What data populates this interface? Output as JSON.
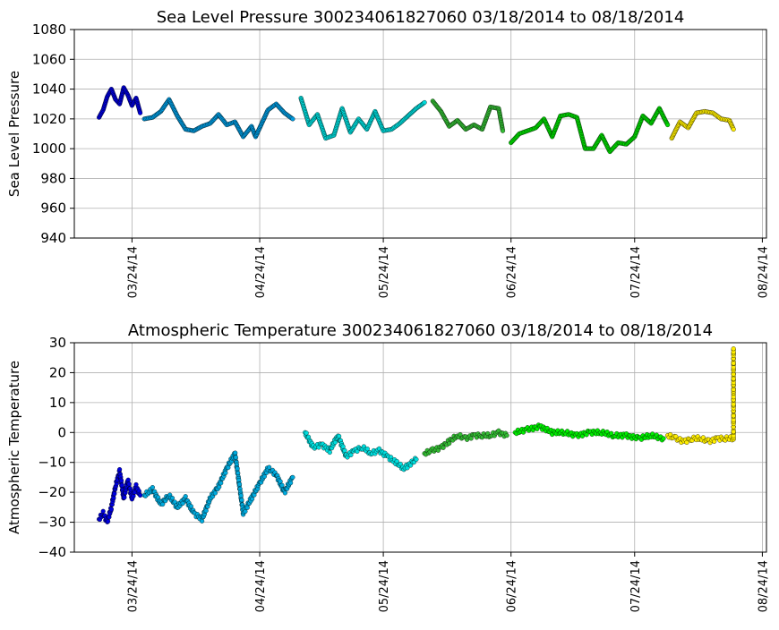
{
  "chart_data": [
    {
      "type": "scatter",
      "title": "Sea Level Pressure 300234061827060  03/18/2014 to 08/18/2014",
      "ylabel": "Sea Level Pressure",
      "xlabel": "",
      "xlim": [
        "2014-03-10",
        "2014-08-25"
      ],
      "ylim": [
        940,
        1080
      ],
      "yticks": [
        940,
        960,
        980,
        1000,
        1020,
        1040,
        1060,
        1080
      ],
      "xticks": [
        {
          "date": "2014-03-24",
          "label": "03/24/14"
        },
        {
          "date": "2014-04-24",
          "label": "04/24/14"
        },
        {
          "date": "2014-05-24",
          "label": "05/24/14"
        },
        {
          "date": "2014-06-24",
          "label": "06/24/14"
        },
        {
          "date": "2014-07-24",
          "label": "07/24/14"
        },
        {
          "date": "2014-08-24",
          "label": "08/24/14"
        }
      ],
      "grid": true,
      "series": [
        {
          "color": "#0000dd",
          "x": [
            "2014-03-16",
            "2014-03-17",
            "2014-03-18",
            "2014-03-19",
            "2014-03-20",
            "2014-03-21",
            "2014-03-22",
            "2014-03-23",
            "2014-03-24",
            "2014-03-25",
            "2014-03-26"
          ],
          "y": [
            1021,
            1026,
            1035,
            1040,
            1033,
            1030,
            1041,
            1036,
            1029,
            1034,
            1024
          ]
        },
        {
          "color": "#0099dd",
          "x": [
            "2014-03-27",
            "2014-03-29",
            "2014-03-31",
            "2014-04-02",
            "2014-04-04",
            "2014-04-06",
            "2014-04-08",
            "2014-04-10",
            "2014-04-12",
            "2014-04-14",
            "2014-04-16",
            "2014-04-18",
            "2014-04-20",
            "2014-04-22",
            "2014-04-23",
            "2014-04-26",
            "2014-04-28",
            "2014-04-30",
            "2014-05-02"
          ],
          "y": [
            1020,
            1021,
            1025,
            1033,
            1022,
            1013,
            1012,
            1015,
            1017,
            1023,
            1016,
            1018,
            1008,
            1015,
            1008,
            1026,
            1030,
            1024,
            1020
          ]
        },
        {
          "color": "#00dddd",
          "x": [
            "2014-05-04",
            "2014-05-06",
            "2014-05-08",
            "2014-05-10",
            "2014-05-12",
            "2014-05-14",
            "2014-05-16",
            "2014-05-18",
            "2014-05-20",
            "2014-05-22",
            "2014-05-24",
            "2014-05-26",
            "2014-05-28",
            "2014-05-30",
            "2014-06-01",
            "2014-06-03"
          ],
          "y": [
            1034,
            1016,
            1023,
            1007,
            1009,
            1027,
            1011,
            1020,
            1013,
            1025,
            1012,
            1013,
            1017,
            1022,
            1027,
            1031
          ]
        },
        {
          "color": "#33bb33",
          "x": [
            "2014-06-05",
            "2014-06-07",
            "2014-06-09",
            "2014-06-11",
            "2014-06-13",
            "2014-06-15",
            "2014-06-17",
            "2014-06-19",
            "2014-06-21",
            "2014-06-22"
          ],
          "y": [
            1032,
            1025,
            1015,
            1019,
            1013,
            1016,
            1013,
            1028,
            1027,
            1012
          ]
        },
        {
          "color": "#00dd00",
          "x": [
            "2014-06-24",
            "2014-06-26",
            "2014-06-28",
            "2014-06-30",
            "2014-07-02",
            "2014-07-04",
            "2014-07-06",
            "2014-07-08",
            "2014-07-10",
            "2014-07-12",
            "2014-07-14",
            "2014-07-16",
            "2014-07-18",
            "2014-07-20",
            "2014-07-22",
            "2014-07-24",
            "2014-07-26",
            "2014-07-28",
            "2014-07-30",
            "2014-08-01"
          ],
          "y": [
            1004,
            1010,
            1012,
            1014,
            1020,
            1008,
            1022,
            1023,
            1021,
            1000,
            1000,
            1009,
            998,
            1004,
            1003,
            1008,
            1022,
            1017,
            1027,
            1016
          ]
        },
        {
          "color": "#ffee00",
          "x": [
            "2014-08-02",
            "2014-08-04",
            "2014-08-06",
            "2014-08-08",
            "2014-08-10",
            "2014-08-12",
            "2014-08-14",
            "2014-08-16",
            "2014-08-17"
          ],
          "y": [
            1007,
            1018,
            1014,
            1024,
            1025,
            1024,
            1020,
            1019,
            1013
          ]
        }
      ]
    },
    {
      "type": "scatter",
      "title": "Atmospheric Temperature 300234061827060  03/18/2014 to 08/18/2014",
      "ylabel": "Atmospheric Temperature",
      "xlabel": "",
      "xlim": [
        "2014-03-10",
        "2014-08-25"
      ],
      "ylim": [
        -40,
        30
      ],
      "yticks": [
        -40,
        -30,
        -20,
        -10,
        0,
        10,
        20,
        30
      ],
      "xticks": [
        {
          "date": "2014-03-24",
          "label": "03/24/14"
        },
        {
          "date": "2014-04-24",
          "label": "04/24/14"
        },
        {
          "date": "2014-05-24",
          "label": "05/24/14"
        },
        {
          "date": "2014-06-24",
          "label": "06/24/14"
        },
        {
          "date": "2014-07-24",
          "label": "07/24/14"
        },
        {
          "date": "2014-08-24",
          "label": "08/24/14"
        }
      ],
      "grid": true,
      "series": [
        {
          "color": "#0000dd",
          "x": [
            "2014-03-16",
            "2014-03-17",
            "2014-03-18",
            "2014-03-19",
            "2014-03-20",
            "2014-03-21",
            "2014-03-22",
            "2014-03-23",
            "2014-03-24",
            "2014-03-25",
            "2014-03-26"
          ],
          "y": [
            -29,
            -27,
            -30,
            -25,
            -18,
            -13,
            -22,
            -16,
            -22,
            -18,
            -21
          ]
        },
        {
          "color": "#00aadd",
          "x": [
            "2014-03-27",
            "2014-03-29",
            "2014-03-31",
            "2014-04-02",
            "2014-04-04",
            "2014-04-06",
            "2014-04-08",
            "2014-04-10",
            "2014-04-12",
            "2014-04-14",
            "2014-04-16",
            "2014-04-18",
            "2014-04-20",
            "2014-04-22",
            "2014-04-24",
            "2014-04-26",
            "2014-04-28",
            "2014-04-30",
            "2014-05-02"
          ],
          "y": [
            -21,
            -19,
            -24,
            -21,
            -25,
            -22,
            -27,
            -29,
            -22,
            -18,
            -12,
            -7,
            -27,
            -22,
            -17,
            -12,
            -14,
            -20,
            -15
          ]
        },
        {
          "color": "#00dddd",
          "x": [
            "2014-05-05",
            "2014-05-07",
            "2014-05-09",
            "2014-05-11",
            "2014-05-13",
            "2014-05-15",
            "2014-05-17",
            "2014-05-19",
            "2014-05-21",
            "2014-05-23",
            "2014-05-25",
            "2014-05-27",
            "2014-05-29",
            "2014-06-01"
          ],
          "y": [
            0,
            -5,
            -4,
            -6,
            -1,
            -8,
            -6,
            -5,
            -7,
            -6,
            -8,
            -10,
            -12,
            -9
          ]
        },
        {
          "color": "#33bb33",
          "x": [
            "2014-06-03",
            "2014-06-05",
            "2014-06-07",
            "2014-06-09",
            "2014-06-11",
            "2014-06-13",
            "2014-06-15",
            "2014-06-17",
            "2014-06-19",
            "2014-06-21",
            "2014-06-23"
          ],
          "y": [
            -7,
            -6,
            -5,
            -3,
            -1,
            -2,
            -1,
            -1,
            -1,
            0,
            -1
          ]
        },
        {
          "color": "#00ee00",
          "x": [
            "2014-06-25",
            "2014-06-28",
            "2014-07-01",
            "2014-07-04",
            "2014-07-07",
            "2014-07-10",
            "2014-07-13",
            "2014-07-16",
            "2014-07-19",
            "2014-07-22",
            "2014-07-25",
            "2014-07-28",
            "2014-07-31"
          ],
          "y": [
            0,
            1,
            2,
            0,
            0,
            -1,
            0,
            0,
            -1,
            -1,
            -2,
            -1,
            -2
          ]
        },
        {
          "color": "#ffee00",
          "x": [
            "2014-08-01",
            "2014-08-03",
            "2014-08-05",
            "2014-08-07",
            "2014-08-09",
            "2014-08-11",
            "2014-08-13",
            "2014-08-15",
            "2014-08-17",
            "2014-08-17",
            "2014-08-17",
            "2014-08-17",
            "2014-08-17"
          ],
          "y": [
            -1,
            -2,
            -3,
            -2,
            -2,
            -3,
            -2,
            -2,
            -2,
            12,
            14,
            20,
            28
          ]
        }
      ]
    }
  ]
}
